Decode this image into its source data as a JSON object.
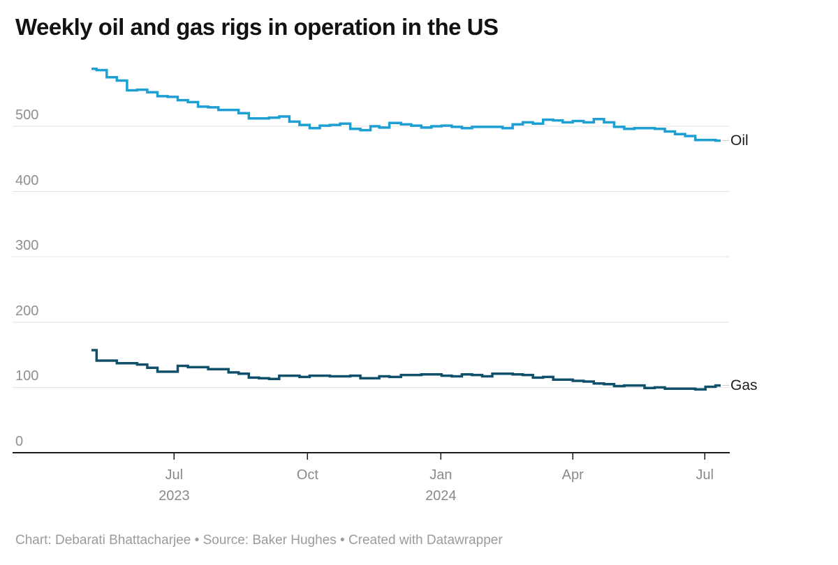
{
  "header": {
    "title": "Weekly oil and gas rigs in operation in the US"
  },
  "footer": {
    "text": "Chart: Debarati Bhattacharjee • Source: Baker Hughes • Created with Datawrapper"
  },
  "colors": {
    "oil_line": "#1d9fd4",
    "gas_line": "#11506b",
    "gridline": "#e2e2e2",
    "axis": "#1a1a1a",
    "connector": "#cccccc"
  },
  "chart_data": {
    "type": "line",
    "title": "Weekly oil and gas rigs in operation in the US",
    "xlabel": "",
    "ylabel": "",
    "ylim": [
      0,
      600
    ],
    "y_ticks": [
      0,
      100,
      200,
      300,
      400,
      500
    ],
    "grid": "horizontal",
    "step_interpolation": true,
    "legend_position": "end-of-line",
    "x_ticks": [
      {
        "date": "2023-07-01",
        "label": "Jul",
        "year": "2023"
      },
      {
        "date": "2023-10-01",
        "label": "Oct",
        "year": ""
      },
      {
        "date": "2024-01-01",
        "label": "Jan",
        "year": "2024"
      },
      {
        "date": "2024-04-01",
        "label": "Apr",
        "year": ""
      },
      {
        "date": "2024-07-01",
        "label": "Jul",
        "year": ""
      }
    ],
    "x": [
      "2023-05-05",
      "2023-05-12",
      "2023-05-19",
      "2023-05-26",
      "2023-06-02",
      "2023-06-09",
      "2023-06-16",
      "2023-06-23",
      "2023-06-30",
      "2023-07-07",
      "2023-07-14",
      "2023-07-21",
      "2023-07-28",
      "2023-08-04",
      "2023-08-11",
      "2023-08-18",
      "2023-08-25",
      "2023-09-01",
      "2023-09-08",
      "2023-09-15",
      "2023-09-22",
      "2023-09-29",
      "2023-10-06",
      "2023-10-13",
      "2023-10-20",
      "2023-10-27",
      "2023-11-03",
      "2023-11-10",
      "2023-11-17",
      "2023-11-22",
      "2023-12-01",
      "2023-12-08",
      "2023-12-15",
      "2023-12-22",
      "2023-12-29",
      "2024-01-05",
      "2024-01-12",
      "2024-01-19",
      "2024-01-26",
      "2024-02-02",
      "2024-02-09",
      "2024-02-16",
      "2024-02-23",
      "2024-03-01",
      "2024-03-08",
      "2024-03-15",
      "2024-03-22",
      "2024-03-28",
      "2024-04-05",
      "2024-04-12",
      "2024-04-19",
      "2024-04-26",
      "2024-05-03",
      "2024-05-10",
      "2024-05-17",
      "2024-05-24",
      "2024-05-31",
      "2024-06-07",
      "2024-06-14",
      "2024-06-21",
      "2024-06-28",
      "2024-07-05",
      "2024-07-12"
    ],
    "series": [
      {
        "name": "Oil",
        "color": "#1d9fd4",
        "values": [
          588,
          586,
          575,
          570,
          555,
          556,
          552,
          546,
          545,
          540,
          537,
          530,
          529,
          525,
          525,
          520,
          512,
          512,
          513,
          515,
          507,
          502,
          497,
          501,
          502,
          504,
          496,
          494,
          500,
          498,
          505,
          503,
          501,
          498,
          500,
          501,
          499,
          497,
          499,
          499,
          499,
          497,
          503,
          506,
          504,
          510,
          509,
          506,
          508,
          506,
          511,
          506,
          499,
          496,
          497,
          497,
          496,
          492,
          488,
          485,
          479,
          479,
          478
        ]
      },
      {
        "name": "Gas",
        "color": "#11506b",
        "values": [
          157,
          141,
          141,
          137,
          137,
          135,
          130,
          124,
          124,
          133,
          131,
          131,
          128,
          128,
          123,
          121,
          115,
          114,
          113,
          118,
          118,
          116,
          118,
          118,
          117,
          117,
          118,
          114,
          114,
          117,
          116,
          119,
          119,
          120,
          120,
          118,
          117,
          120,
          119,
          117,
          121,
          121,
          120,
          119,
          115,
          116,
          112,
          112,
          110,
          109,
          106,
          105,
          102,
          103,
          103,
          99,
          100,
          98,
          98,
          98,
          97,
          101,
          103
        ]
      }
    ]
  }
}
